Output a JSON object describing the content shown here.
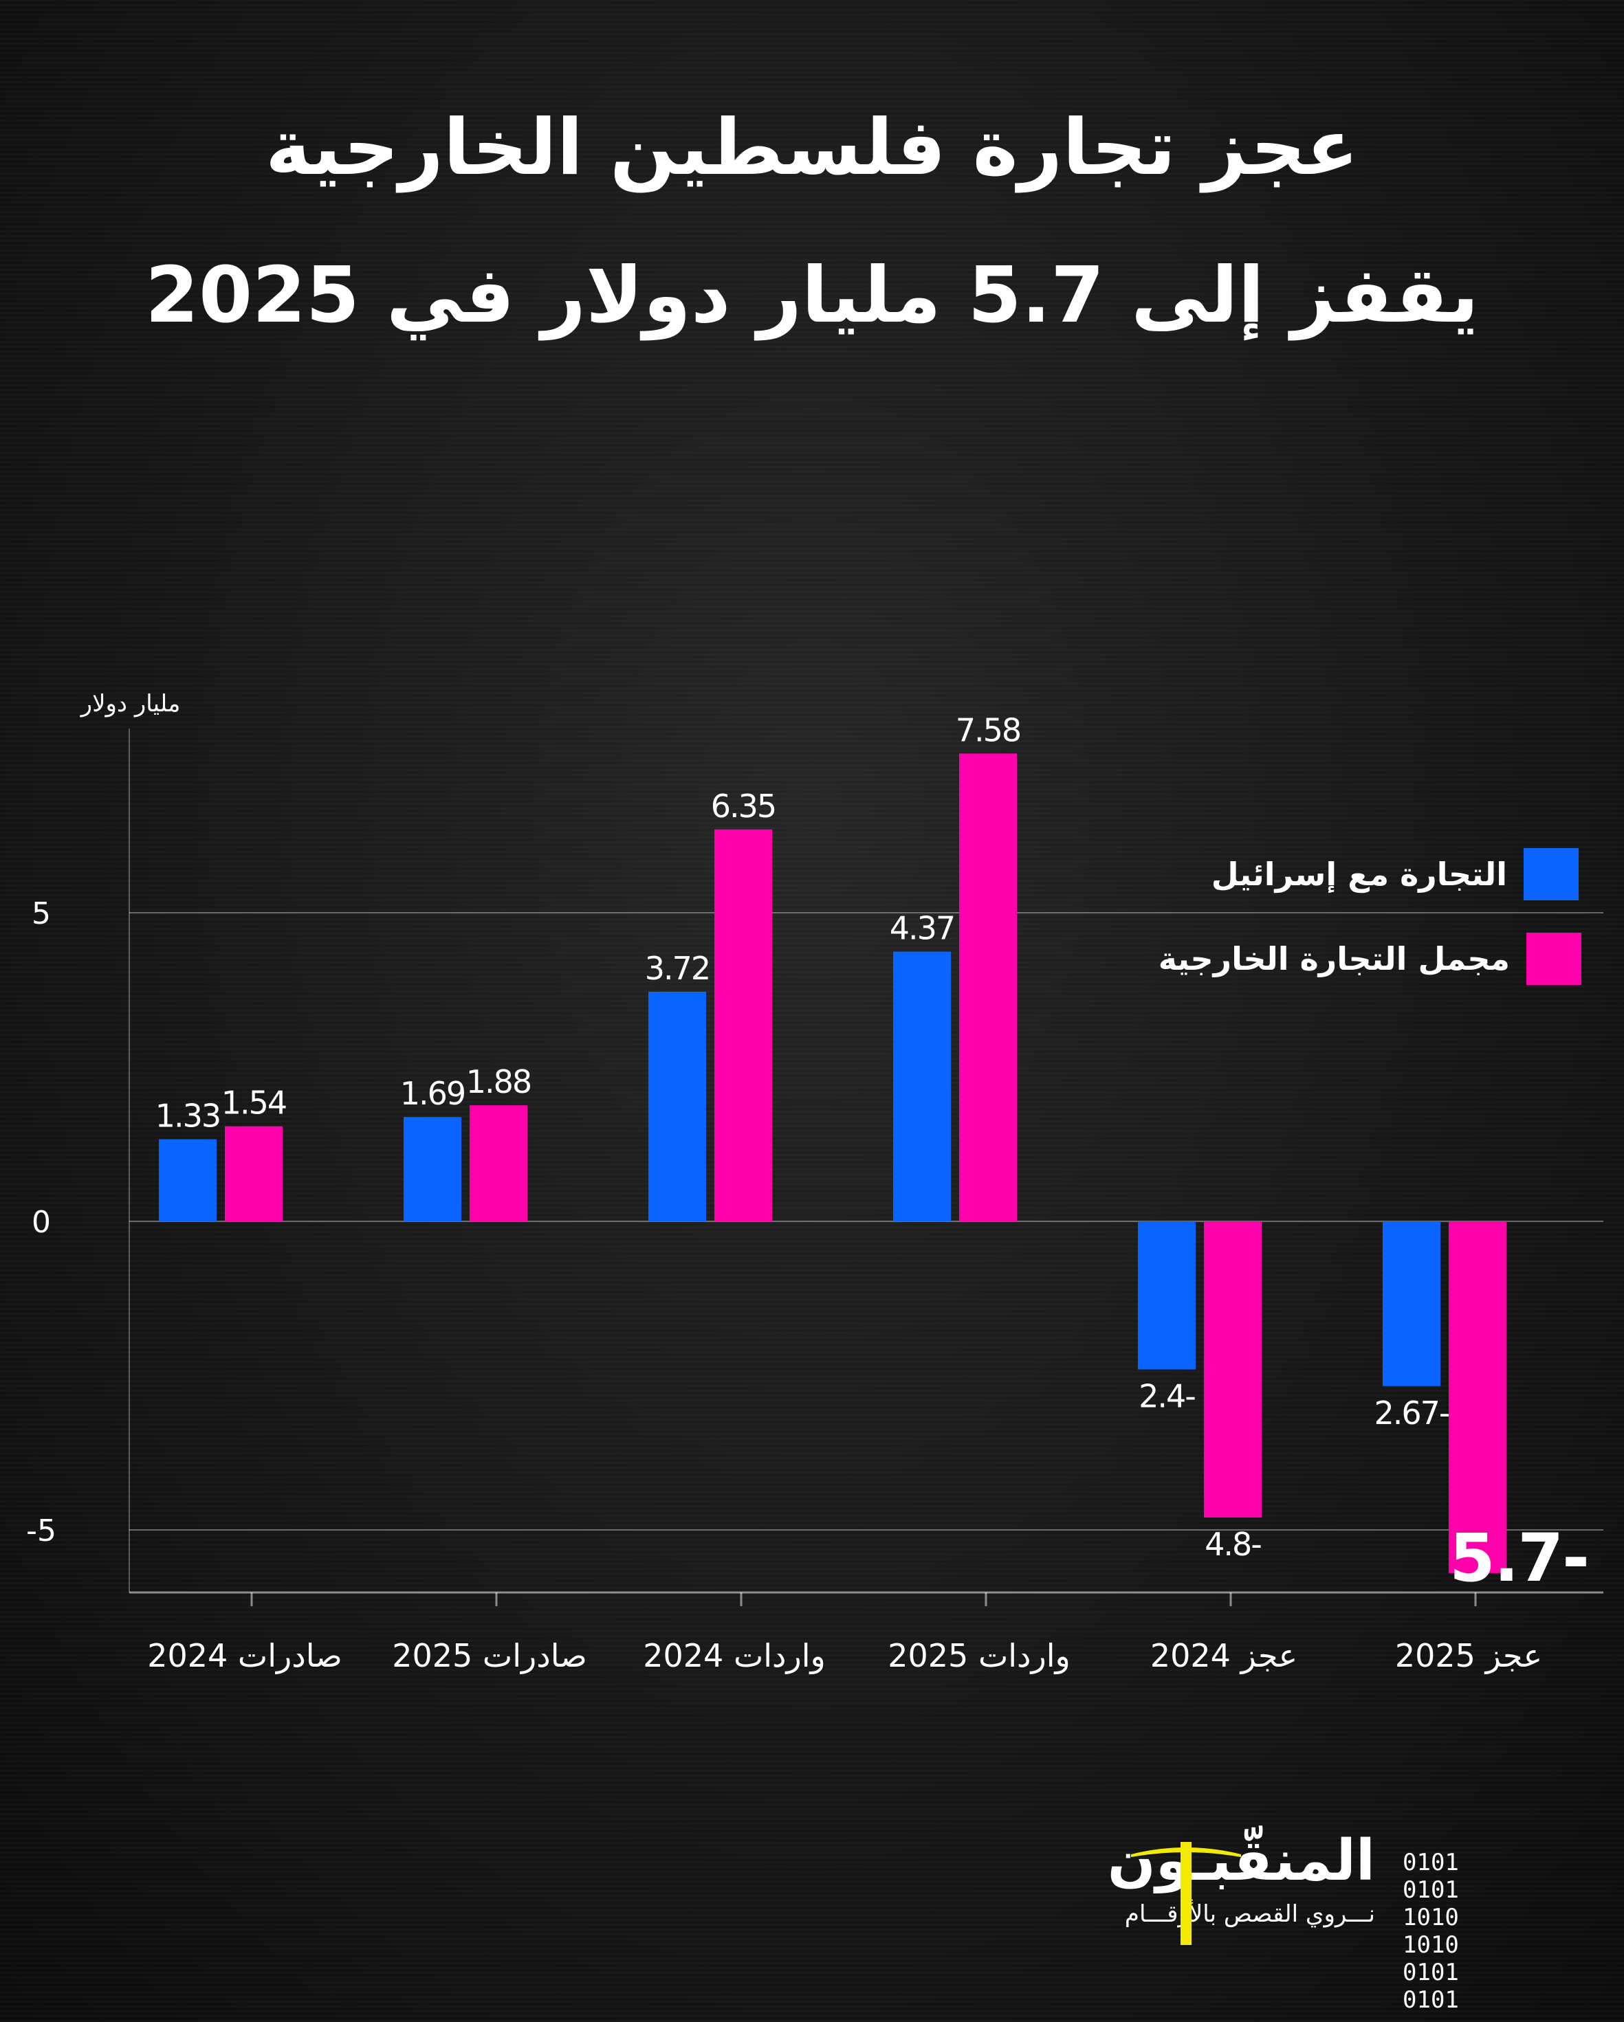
{
  "title_line1": "عجز تجارة فلسطين الخارجية",
  "title_line2": "يقفز إلى 5.7 مليار دولار في 2025",
  "chart_data": {
    "type": "bar",
    "ylabel": "مليار دولار",
    "categories": [
      "صادرات 2024",
      "صادرات 2025",
      "واردات 2024",
      "واردات 2025",
      "عجز 2024",
      "عجز 2025"
    ],
    "series": [
      {
        "name": "التجارة مع إسرائيل",
        "color": "#0a64ff",
        "values": [
          1.33,
          1.69,
          3.72,
          4.37,
          -2.4,
          -2.67
        ],
        "labels": [
          "1.33",
          "1.69",
          "3.72",
          "4.37",
          "2.4-",
          "2.67-"
        ]
      },
      {
        "name": "مجمل التجارة الخارجية",
        "color": "#ff00aa",
        "values": [
          1.54,
          1.88,
          6.35,
          7.58,
          -4.8,
          -5.7
        ],
        "labels": [
          "1.54",
          "1.88",
          "6.35",
          "7.58",
          "4.8-",
          "5.7-"
        ]
      }
    ],
    "yticks": [
      5,
      0,
      -5
    ],
    "ytick_labels": [
      "5",
      "0",
      "-5"
    ],
    "ylim": [
      -6,
      8
    ],
    "grid": true,
    "legend": "right"
  },
  "logo": {
    "name": "المنقّبـون",
    "tagline": "نـــروي القصص بالأرقـــام",
    "binary": [
      "0101",
      "1010",
      "0101"
    ],
    "accent": "#f2ea00"
  }
}
